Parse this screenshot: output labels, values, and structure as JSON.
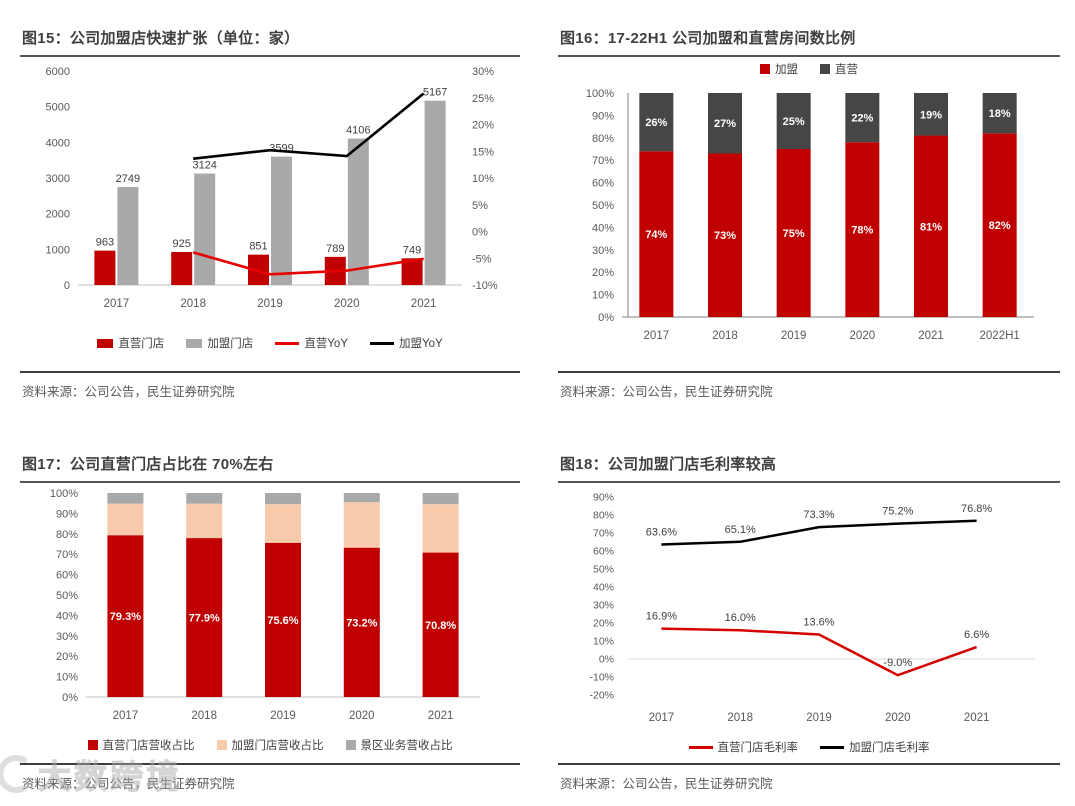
{
  "watermark": {
    "text": "大数跨境"
  },
  "figures": [
    {
      "title": "图15：公司加盟店快速扩张（单位：家）",
      "source": "资料来源：公司公告，民生证券研究院",
      "chart_index": 0
    },
    {
      "title": "图16：17-22H1 公司加盟和直营房间数比例",
      "source": "资料来源：公司公告，民生证券研究院",
      "chart_index": 1
    },
    {
      "title": "图17：公司直营门店占比在 70%左右",
      "source": "资料来源：公司公告，民生证券研究院",
      "chart_index": 2
    },
    {
      "title": "图18：公司加盟门店毛利率较高",
      "source": "资料来源：公司公告，民生证券研究院",
      "chart_index": 3
    }
  ],
  "chart_data": [
    {
      "type": "bar",
      "subtype": "combo-bar-line",
      "title": "公司加盟店快速扩张（单位：家）",
      "categories": [
        "2017",
        "2018",
        "2019",
        "2020",
        "2021"
      ],
      "bar_series": [
        {
          "name": "直营门店",
          "color": "#c00000",
          "values": [
            963,
            925,
            851,
            789,
            749
          ]
        },
        {
          "name": "加盟门店",
          "color": "#a9a9a9",
          "values": [
            2749,
            3124,
            3599,
            4106,
            5167
          ]
        }
      ],
      "line_series": [
        {
          "name": "直营YoY",
          "color": "#e60000",
          "values": [
            null,
            -3.9,
            -8.0,
            -7.3,
            -5.1
          ]
        },
        {
          "name": "加盟YoY",
          "color": "#000000",
          "values": [
            null,
            13.6,
            15.2,
            14.1,
            25.8
          ]
        }
      ],
      "left_axis": {
        "min": 0,
        "max": 6000,
        "step": 1000
      },
      "right_axis": {
        "min": -10,
        "max": 30,
        "step": 5,
        "suffix": "%"
      },
      "legend_position": "bottom",
      "grid": false
    },
    {
      "type": "bar",
      "subtype": "stacked-100",
      "title": "17-22H1 公司加盟和直营房间数比例",
      "categories": [
        "2017",
        "2018",
        "2019",
        "2020",
        "2021",
        "2022H1"
      ],
      "series": [
        {
          "name": "加盟",
          "color": "#c00000",
          "values": [
            74,
            73,
            75,
            78,
            81,
            82
          ],
          "labels": [
            "74%",
            "73%",
            "75%",
            "78%",
            "81%",
            "82%"
          ],
          "label_color": "#ffffff"
        },
        {
          "name": "直营",
          "color": "#464646",
          "values": [
            26,
            27,
            25,
            22,
            19,
            18
          ],
          "labels": [
            "26%",
            "27%",
            "25%",
            "22%",
            "19%",
            "18%"
          ],
          "label_color": "#ffffff"
        }
      ],
      "y_axis": {
        "min": 0,
        "max": 100,
        "step": 10,
        "suffix": "%"
      },
      "y_axis_line": true,
      "legend_position": "top",
      "grid": false
    },
    {
      "type": "bar",
      "subtype": "stacked-100",
      "title": "公司直营门店占比在 70%左右",
      "categories": [
        "2017",
        "2018",
        "2019",
        "2020",
        "2021"
      ],
      "series": [
        {
          "name": "直营门店营收占比",
          "color": "#c00000",
          "values": [
            79.3,
            77.9,
            75.6,
            73.2,
            70.8
          ],
          "labels": [
            "79.3%",
            "77.9%",
            "75.6%",
            "73.2%",
            "70.8%"
          ],
          "label_color": "#ffffff"
        },
        {
          "name": "加盟门店营收占比",
          "color": "#f8cbad",
          "values": [
            15.5,
            16.9,
            18.9,
            22.3,
            23.7
          ]
        },
        {
          "name": "景区业务营收占比",
          "color": "#a9a9a9",
          "values": [
            5.2,
            5.2,
            5.5,
            4.5,
            5.5
          ]
        }
      ],
      "y_axis": {
        "min": 0,
        "max": 100,
        "step": 10,
        "suffix": "%"
      },
      "y_axis_line": false,
      "legend_position": "bottom",
      "grid": false
    },
    {
      "type": "line",
      "title": "公司加盟门店毛利率较高",
      "categories": [
        "2017",
        "2018",
        "2019",
        "2020",
        "2021"
      ],
      "series": [
        {
          "name": "直营门店毛利率",
          "color": "#d40000",
          "values": [
            16.9,
            16.0,
            13.6,
            -9.0,
            6.6
          ],
          "labels": [
            "16.9%",
            "16.0%",
            "13.6%",
            "-9.0%",
            "6.6%"
          ]
        },
        {
          "name": "加盟门店毛利率",
          "color": "#000000",
          "values": [
            63.6,
            65.1,
            73.3,
            75.2,
            76.8
          ],
          "labels": [
            "63.6%",
            "65.1%",
            "73.3%",
            "75.2%",
            "76.8%"
          ]
        }
      ],
      "y_axis": {
        "min": -20,
        "max": 90,
        "step": 10,
        "suffix": "%"
      },
      "zero_line": true,
      "legend_position": "bottom",
      "grid": false
    }
  ]
}
